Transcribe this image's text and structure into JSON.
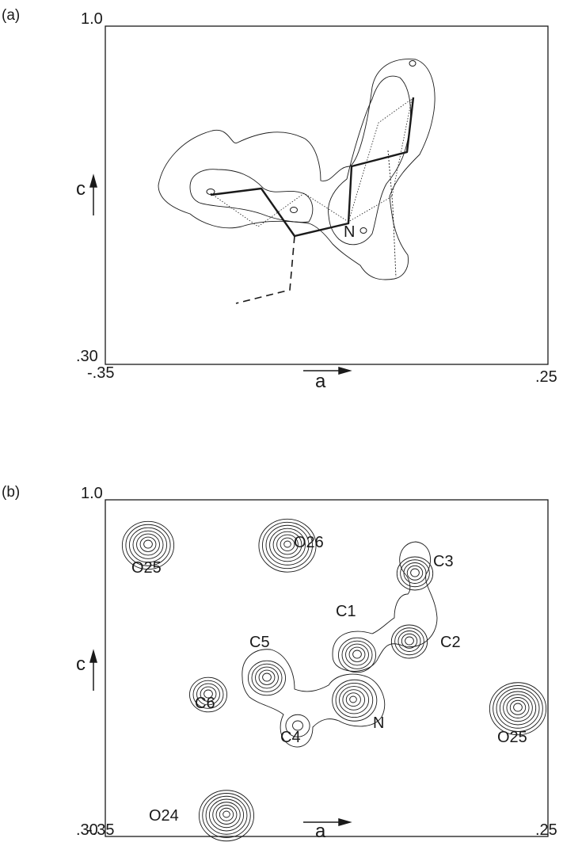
{
  "panels": [
    {
      "id": "a",
      "label": "(a)",
      "y_top": "1.0",
      "y_bottom": ".30",
      "x_left": "-.35",
      "x_right": ".25",
      "x_axis": "a",
      "y_axis": "c",
      "atom_labels": [
        "N"
      ]
    },
    {
      "id": "b",
      "label": "(b)",
      "y_top": "1.0",
      "y_bottom": ".30",
      "x_left": "-.35",
      "x_right": ".25",
      "x_axis": "a",
      "y_axis": "c",
      "atom_labels": [
        "O25",
        "O26",
        "C3",
        "C1",
        "C2",
        "C5",
        "C6",
        "N",
        "C4",
        "O25",
        "O24"
      ]
    }
  ],
  "colors": {
    "ink": "#1a1a1a",
    "paper": "#ffffff"
  }
}
